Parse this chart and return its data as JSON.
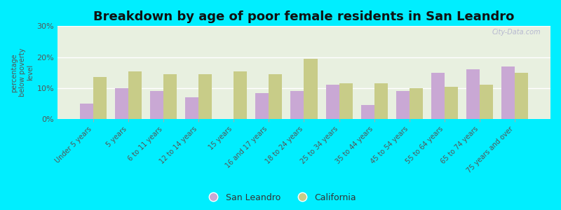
{
  "title": "Breakdown by age of poor female residents in San Leandro",
  "ylabel": "percentage\nbelow poverty\nlevel",
  "categories": [
    "Under 5 years",
    "5 years",
    "6 to 11 years",
    "12 to 14 years",
    "15 years",
    "16 and 17 years",
    "18 to 24 years",
    "25 to 34 years",
    "35 to 44 years",
    "45 to 54 years",
    "55 to 64 years",
    "65 to 74 years",
    "75 years and over"
  ],
  "san_leandro": [
    5,
    10,
    9,
    7,
    0,
    8.5,
    9,
    11,
    4.5,
    9,
    15,
    16,
    17
  ],
  "california": [
    13.5,
    15.5,
    14.5,
    14.5,
    15.5,
    14.5,
    19.5,
    11.5,
    11.5,
    10,
    10.5,
    11,
    15
  ],
  "san_leandro_color": "#c9a8d4",
  "california_color": "#c8cc88",
  "background_outer": "#00eeff",
  "background_plot_top": "#e8f0e0",
  "background_plot_bottom": "#d8e8c8",
  "ylim": [
    0,
    30
  ],
  "yticks": [
    0,
    10,
    20,
    30
  ],
  "ytick_labels": [
    "0%",
    "10%",
    "20%",
    "30%"
  ],
  "bar_width": 0.38,
  "title_fontsize": 13,
  "watermark": "City-Data.com"
}
